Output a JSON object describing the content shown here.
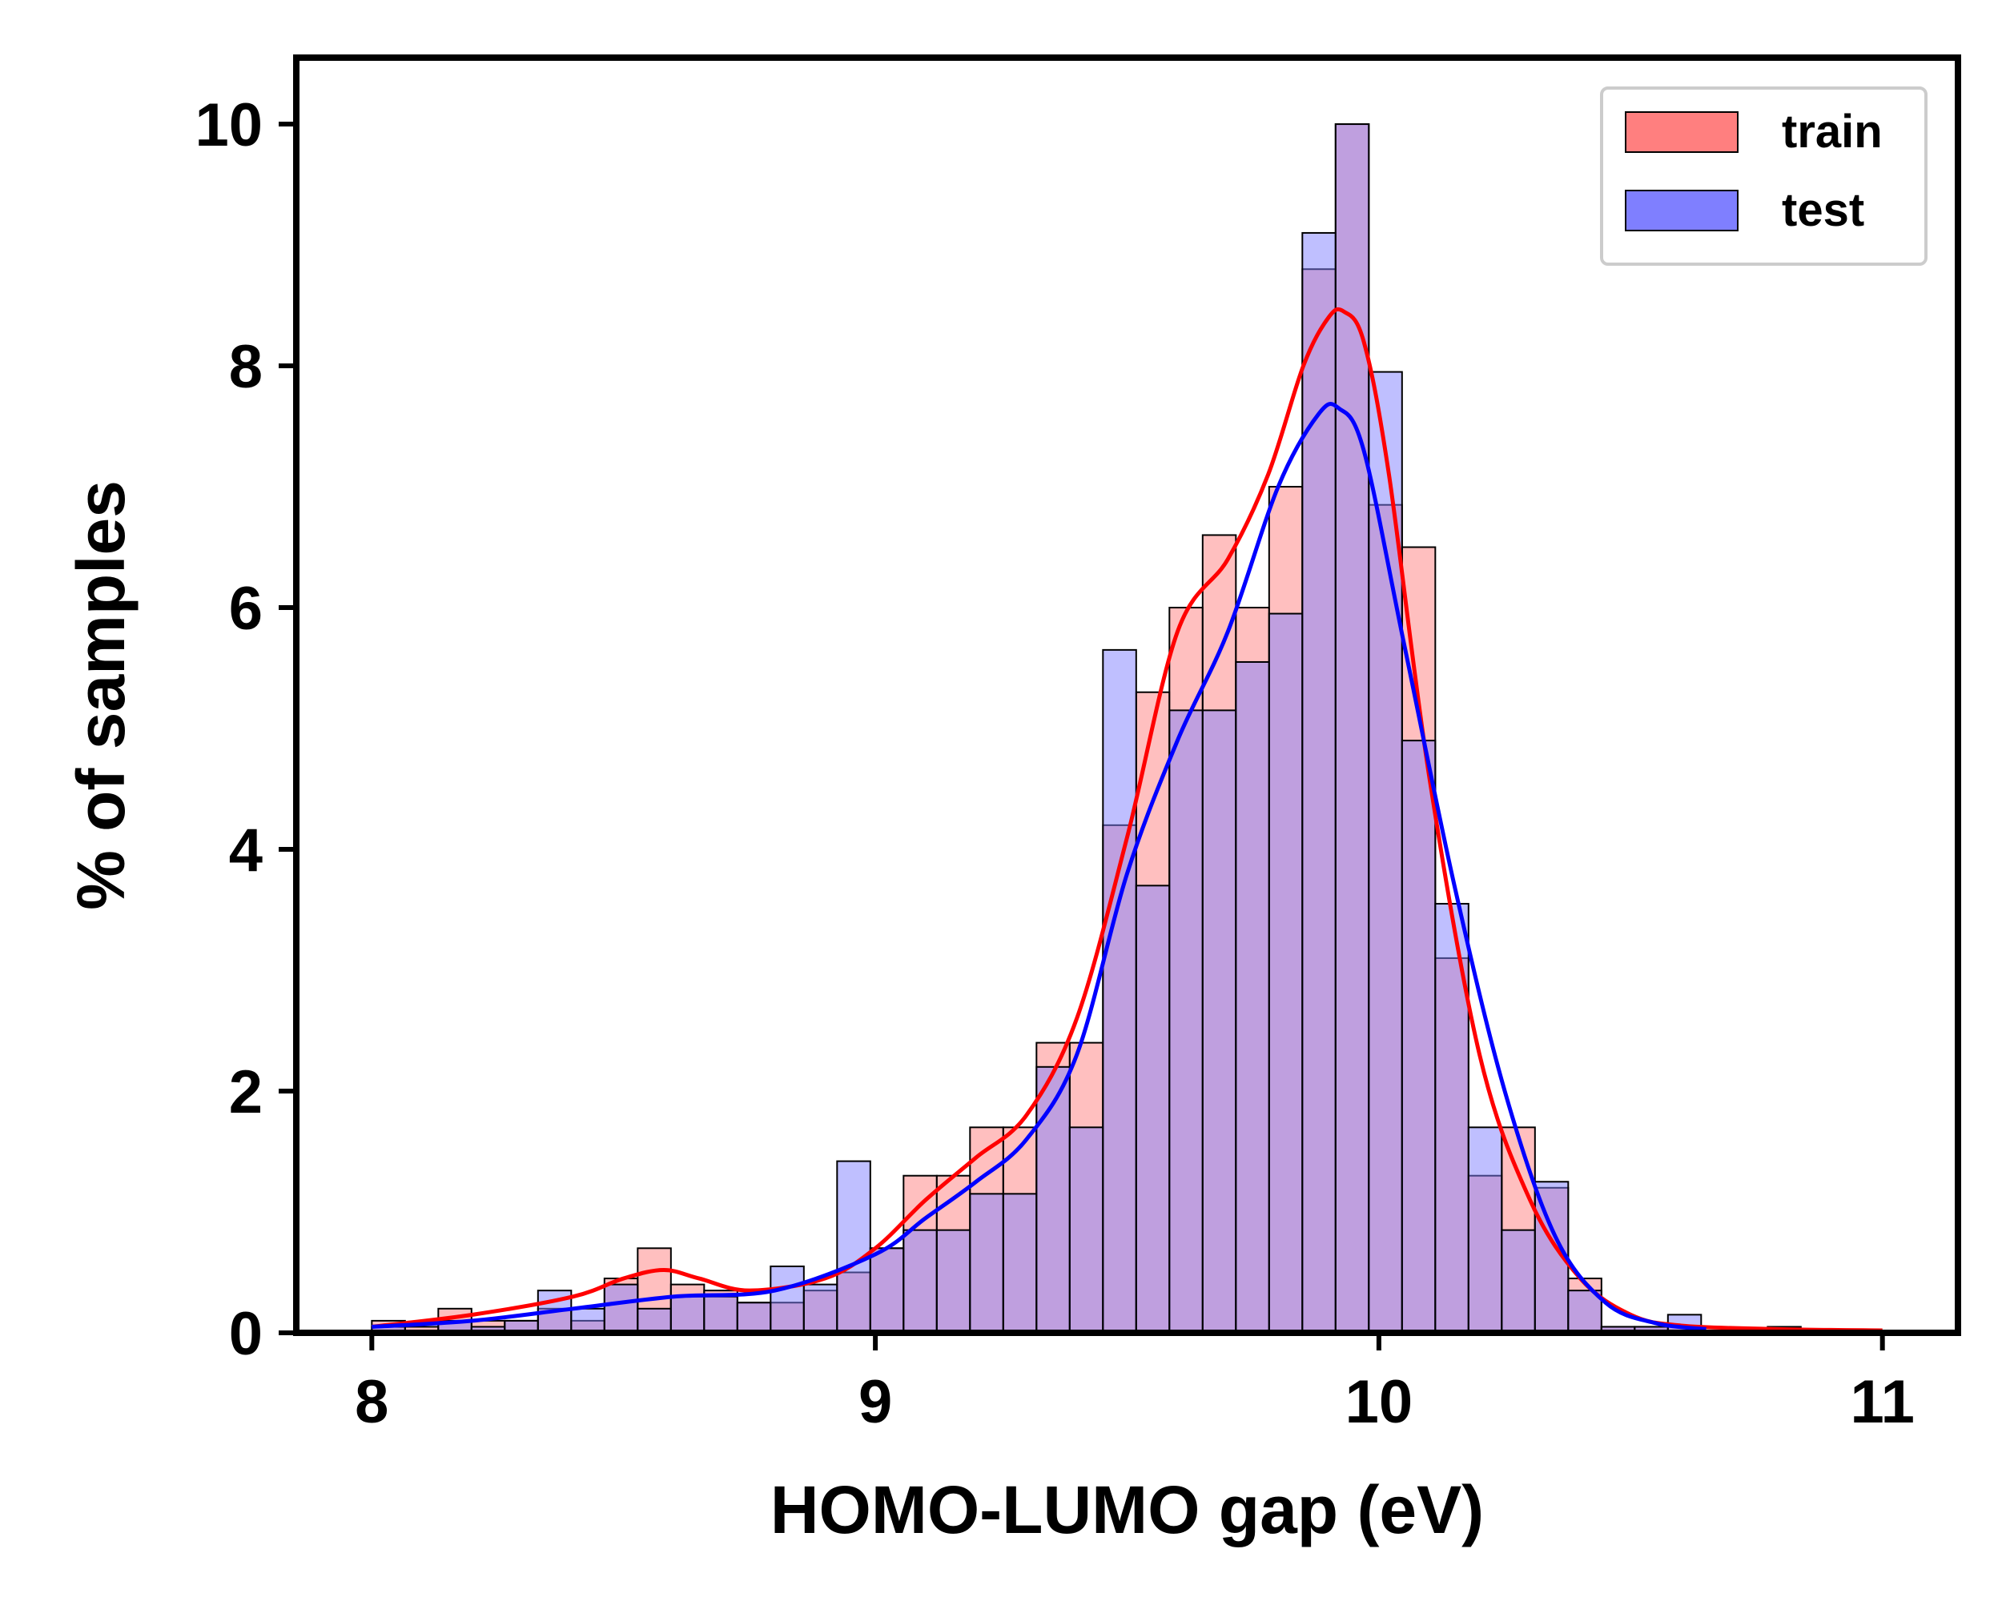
{
  "chart_data": {
    "type": "bar",
    "subtype": "overlaid-histogram-with-kde",
    "title": "",
    "xlabel": "HOMO-LUMO gap (eV)",
    "ylabel": "% of samples",
    "xlim": [
      7.85,
      11.15
    ],
    "ylim": [
      0,
      10.55
    ],
    "xticks": [
      "8",
      "9",
      "10",
      "11"
    ],
    "xtick_values": [
      8,
      9,
      10,
      11
    ],
    "yticks": [
      "0",
      "2",
      "4",
      "6",
      "8",
      "10"
    ],
    "ytick_values": [
      0,
      2,
      4,
      6,
      8,
      10
    ],
    "grid": false,
    "legend_position": "top-right",
    "bin_edges": [
      8.0,
      8.066,
      8.132,
      8.198,
      8.264,
      8.33,
      8.396,
      8.462,
      8.528,
      8.594,
      8.66,
      8.726,
      8.792,
      8.858,
      8.924,
      8.99,
      9.056,
      9.122,
      9.188,
      9.254,
      9.32,
      9.386,
      9.452,
      9.518,
      9.584,
      9.65,
      9.716,
      9.782,
      9.848,
      9.914,
      9.98,
      10.046,
      10.112,
      10.178,
      10.244,
      10.31,
      10.376,
      10.442,
      10.508,
      10.574,
      10.64,
      10.706,
      10.772,
      10.838,
      10.904,
      10.97
    ],
    "series": [
      {
        "name": "train",
        "color": "#ff0000",
        "fill": "#ff7f7f",
        "histogram": [
          0.1,
          0.05,
          0.2,
          0.1,
          0.1,
          0.2,
          0.1,
          0.45,
          0.7,
          0.4,
          0.35,
          0.25,
          0.25,
          0.35,
          0.5,
          0.7,
          1.3,
          1.3,
          1.7,
          1.7,
          2.4,
          2.4,
          4.2,
          5.3,
          6.0,
          6.6,
          6.0,
          7.0,
          8.8,
          10.0,
          6.85,
          6.5,
          3.1,
          1.3,
          1.7,
          1.2,
          0.45,
          0.05,
          0.05,
          0.05,
          0.0,
          0.0,
          0.05,
          0.0,
          0.0
        ],
        "kde_x": [
          8.0,
          8.2,
          8.4,
          8.5,
          8.58,
          8.65,
          8.75,
          8.9,
          9.0,
          9.1,
          9.2,
          9.3,
          9.4,
          9.5,
          9.6,
          9.7,
          9.78,
          9.85,
          9.9,
          9.93,
          9.97,
          10.02,
          10.1,
          10.2,
          10.3,
          10.4,
          10.5,
          10.6,
          10.8,
          11.0
        ],
        "kde_y": [
          0.05,
          0.15,
          0.3,
          0.45,
          0.52,
          0.45,
          0.35,
          0.45,
          0.7,
          1.1,
          1.45,
          1.8,
          2.6,
          4.1,
          5.8,
          6.4,
          7.1,
          8.0,
          8.4,
          8.45,
          8.2,
          7.1,
          4.6,
          2.3,
          1.1,
          0.45,
          0.15,
          0.06,
          0.03,
          0.02
        ]
      },
      {
        "name": "test",
        "color": "#0000ff",
        "fill": "#7f7fff",
        "histogram": [
          0.05,
          0.0,
          0.1,
          0.05,
          0.1,
          0.35,
          0.2,
          0.4,
          0.2,
          0.3,
          0.3,
          0.25,
          0.55,
          0.4,
          1.42,
          0.7,
          0.85,
          0.85,
          1.15,
          1.15,
          2.2,
          1.7,
          5.65,
          3.7,
          5.15,
          5.15,
          5.55,
          5.95,
          9.1,
          10.0,
          7.95,
          4.9,
          3.55,
          1.7,
          0.85,
          1.25,
          0.35,
          0.05,
          0.05,
          0.15,
          0.0,
          0.0,
          0.0,
          0.0,
          0.0
        ],
        "kde_x": [
          8.0,
          8.2,
          8.4,
          8.6,
          8.8,
          9.0,
          9.1,
          9.2,
          9.3,
          9.4,
          9.5,
          9.6,
          9.7,
          9.8,
          9.88,
          9.92,
          9.97,
          10.05,
          10.15,
          10.25,
          10.35,
          10.45,
          10.55,
          10.65
        ],
        "kde_y": [
          0.05,
          0.1,
          0.2,
          0.3,
          0.35,
          0.65,
          0.95,
          1.25,
          1.6,
          2.3,
          3.8,
          4.9,
          5.8,
          7.0,
          7.6,
          7.65,
          7.3,
          5.7,
          3.7,
          2.0,
          0.8,
          0.25,
          0.08,
          0.03
        ]
      }
    ]
  }
}
